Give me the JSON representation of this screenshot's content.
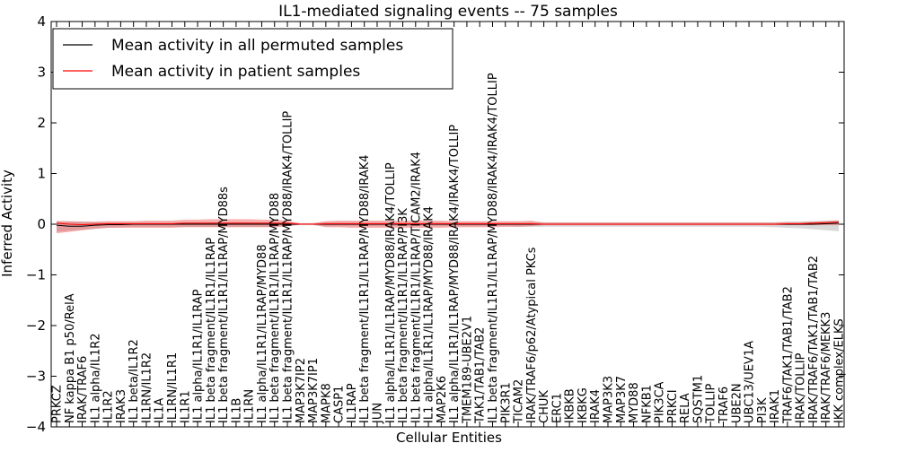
{
  "chart_data": {
    "type": "line",
    "title": "IL1-mediated signaling events -- 75 samples",
    "xlabel": "Cellular Entities",
    "ylabel": "Inferred Activity",
    "ylim": [
      -4,
      4
    ],
    "yticks": [
      -4,
      -3,
      -2,
      -1,
      0,
      1,
      2,
      3,
      4
    ],
    "ytick_labels": [
      "−4",
      "−3",
      "−2",
      "−1",
      "0",
      "1",
      "2",
      "3",
      "4"
    ],
    "grid": false,
    "legend_position": "top-left",
    "categories": [
      "PRKCZ",
      "NF kappa B1 p50/RelA",
      "IRAK/TRAF6",
      "IL1 alpha/IL1R2",
      "IL1R2",
      "IRAK3",
      "IL1 beta/IL1R2",
      "IL1RN/IL1R2",
      "IL1A",
      "IL1RN/IL1R1",
      "IL1R1",
      "IL1 alpha/IL1R1/IL1RAP",
      "IL1 beta fragment/IL1R1/IL1RAP",
      "IL1 beta fragment/IL1R1/IL1RAP/MYD88s",
      "IL1B",
      "IL1RN",
      "IL1 alpha/IL1R1/IL1RAP/MYD88",
      "IL1 beta fragment/IL1R1/IL1RAP/MYD88",
      "IL1 beta fragment/IL1R1/IL1RAP/MYD88/IRAK4/TOLLIP",
      "MAP3K7IP2",
      "MAP3K7IP1",
      "MAPK8",
      "CASP1",
      "IL1RAP",
      "IL1 beta fragment/IL1R1/IL1RAP/MYD88/IRAK4",
      "JUN",
      "IL1 alpha/IL1R1/IL1RAP/MYD88/IRAK4/TOLLIP",
      "IL1 beta fragment/IL1R1/IL1RAP/PI3K",
      "IL1 beta fragment/IL1R1/IL1RAP/TICAM2/IRAK4",
      "IL1 alpha/IL1R1/IL1RAP/MYD88/IRAK4",
      "MAP2K6",
      "IL1 alpha/IL1R1/IL1RAP/MYD88/IRAK4/IRAK4/TOLLIP",
      "TMEM189-UBE2V1",
      "TAK1/TAB1/TAB2",
      "IL1 beta fragment/IL1R1/IL1RAP/MYD88/IRAK4/IRAK4/TOLLIP",
      "PIK3R1",
      "TICAM2",
      "IRAK/TRAF6/p62/Atypical PKCs",
      "CHUK",
      "ERC1",
      "IKBKB",
      "IKBKG",
      "IRAK4",
      "MAP3K3",
      "MAP3K7",
      "MYD88",
      "NFKB1",
      "PIK3CA",
      "PRKCI",
      "RELA",
      "SQSTM1",
      "TOLLIP",
      "TRAF6",
      "UBE2N",
      "UBC13/UEV1A",
      "PI3K",
      "IRAK1",
      "TRAF6/TAK1/TAB1/TAB2",
      "IRAK/TOLLIP",
      "IRAK/TRAF6/TAK1/TAB1/TAB2",
      "IRAK/TRAF6/MEKK3",
      "IKK complex/ELKS"
    ],
    "series": [
      {
        "name": "Mean activity in all permuted samples",
        "color": "#000000",
        "values": [
          -0.02,
          -0.04,
          -0.04,
          -0.02,
          -0.01,
          -0.01,
          0.0,
          0.0,
          0.0,
          0.0,
          0.0,
          0.0,
          0.0,
          0.0,
          0.0,
          0.0,
          0.0,
          0.0,
          0.0,
          0.0,
          0.0,
          0.0,
          0.0,
          0.0,
          0.0,
          0.0,
          0.0,
          0.0,
          0.0,
          0.0,
          0.0,
          0.0,
          0.0,
          0.0,
          0.0,
          0.0,
          0.0,
          0.0,
          0.0,
          0.0,
          0.0,
          0.0,
          0.0,
          0.0,
          0.0,
          0.0,
          0.0,
          0.0,
          0.0,
          0.0,
          0.0,
          0.0,
          0.0,
          0.0,
          0.0,
          0.0,
          0.0,
          0.0,
          0.0,
          0.0,
          0.01,
          0.02
        ],
        "band_lower": [
          -0.15,
          -0.13,
          -0.11,
          -0.09,
          -0.07,
          -0.06,
          -0.05,
          -0.05,
          -0.05,
          -0.05,
          -0.05,
          -0.05,
          -0.05,
          -0.05,
          -0.05,
          -0.05,
          -0.05,
          -0.05,
          -0.03,
          -0.02,
          -0.02,
          -0.04,
          -0.04,
          -0.04,
          -0.04,
          -0.04,
          -0.04,
          -0.04,
          -0.04,
          -0.04,
          -0.04,
          -0.04,
          -0.04,
          -0.04,
          -0.04,
          -0.04,
          -0.05,
          -0.05,
          -0.05,
          -0.05,
          -0.05,
          -0.05,
          -0.05,
          -0.05,
          -0.05,
          -0.05,
          -0.05,
          -0.05,
          -0.05,
          -0.05,
          -0.05,
          -0.05,
          -0.05,
          -0.05,
          -0.05,
          -0.05,
          -0.06,
          -0.07,
          -0.08,
          -0.1,
          -0.12,
          -0.14
        ],
        "band_upper": [
          0.06,
          0.05,
          0.05,
          0.04,
          0.04,
          0.04,
          0.04,
          0.04,
          0.04,
          0.04,
          0.04,
          0.04,
          0.04,
          0.04,
          0.04,
          0.04,
          0.04,
          0.04,
          0.03,
          0.02,
          0.02,
          0.04,
          0.04,
          0.04,
          0.04,
          0.04,
          0.04,
          0.04,
          0.04,
          0.04,
          0.04,
          0.04,
          0.04,
          0.04,
          0.04,
          0.04,
          0.04,
          0.04,
          0.04,
          0.04,
          0.04,
          0.04,
          0.04,
          0.04,
          0.04,
          0.04,
          0.04,
          0.04,
          0.04,
          0.04,
          0.04,
          0.04,
          0.04,
          0.04,
          0.04,
          0.04,
          0.04,
          0.05,
          0.05,
          0.06,
          0.07,
          0.08
        ]
      },
      {
        "name": "Mean activity in patient samples",
        "color": "#ff0000",
        "values": [
          0.02,
          0.0,
          -0.01,
          0.0,
          0.01,
          0.01,
          0.01,
          0.01,
          0.01,
          0.01,
          0.02,
          0.02,
          0.02,
          0.02,
          0.02,
          0.02,
          0.02,
          0.02,
          0.02,
          0.0,
          0.0,
          0.01,
          0.01,
          0.01,
          0.01,
          0.01,
          0.01,
          0.01,
          0.01,
          0.01,
          0.01,
          0.01,
          0.01,
          0.01,
          0.01,
          0.01,
          0.01,
          0.01,
          0.0,
          0.0,
          0.0,
          0.0,
          0.0,
          0.0,
          0.0,
          0.0,
          0.0,
          0.0,
          0.0,
          0.0,
          0.0,
          0.0,
          0.0,
          0.0,
          0.0,
          0.0,
          0.0,
          0.01,
          0.01,
          0.02,
          0.03,
          0.04
        ],
        "band_lower": [
          -0.18,
          -0.15,
          -0.12,
          -0.09,
          -0.07,
          -0.07,
          -0.07,
          -0.07,
          -0.07,
          -0.07,
          -0.06,
          -0.06,
          -0.06,
          -0.06,
          -0.06,
          -0.06,
          -0.06,
          -0.06,
          -0.04,
          -0.01,
          -0.01,
          -0.06,
          -0.06,
          -0.07,
          -0.07,
          -0.07,
          -0.07,
          -0.07,
          -0.07,
          -0.07,
          -0.07,
          -0.06,
          -0.06,
          -0.06,
          -0.06,
          -0.05,
          -0.05,
          -0.04,
          -0.02,
          -0.02,
          -0.02,
          -0.02,
          -0.02,
          -0.02,
          -0.02,
          -0.02,
          -0.02,
          -0.02,
          -0.02,
          -0.02,
          -0.02,
          -0.02,
          -0.02,
          -0.02,
          -0.02,
          -0.02,
          -0.02,
          -0.02,
          -0.02,
          -0.02,
          -0.02,
          -0.02
        ],
        "band_upper": [
          0.06,
          0.06,
          0.05,
          0.05,
          0.06,
          0.06,
          0.06,
          0.07,
          0.07,
          0.07,
          0.09,
          0.09,
          0.1,
          0.1,
          0.1,
          0.1,
          0.09,
          0.09,
          0.07,
          0.02,
          0.02,
          0.06,
          0.07,
          0.07,
          0.07,
          0.07,
          0.07,
          0.07,
          0.07,
          0.07,
          0.07,
          0.06,
          0.06,
          0.06,
          0.06,
          0.06,
          0.06,
          0.07,
          0.03,
          0.03,
          0.03,
          0.03,
          0.03,
          0.03,
          0.03,
          0.03,
          0.03,
          0.03,
          0.03,
          0.03,
          0.03,
          0.03,
          0.03,
          0.03,
          0.03,
          0.03,
          0.03,
          0.04,
          0.04,
          0.05,
          0.06,
          0.07
        ]
      }
    ]
  }
}
